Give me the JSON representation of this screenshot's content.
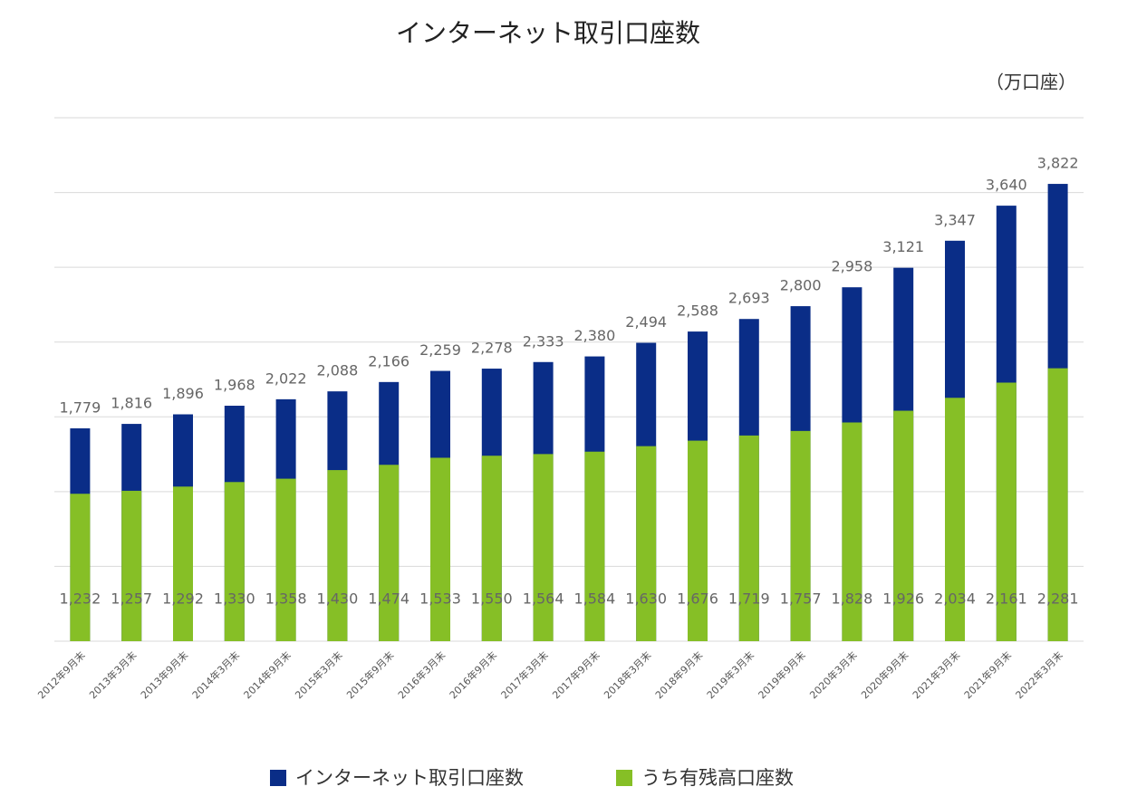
{
  "chart_data": {
    "type": "bar",
    "title": "インターネット取引口座数",
    "y_label": "（万口座）",
    "categories": [
      "2012年9月末",
      "2013年3月末",
      "2013年9月末",
      "2014年3月末",
      "2014年9月末",
      "2015年3月末",
      "2015年9月末",
      "2016年3月末",
      "2016年9月末",
      "2017年3月末",
      "2017年9月末",
      "2018年3月末",
      "2018年9月末",
      "2019年3月末",
      "2019年9月末",
      "2020年3月末",
      "2020年9月末",
      "2021年3月末",
      "2021年9月末",
      "2022年3月末"
    ],
    "series": [
      {
        "name": "インターネット取引口座数",
        "color": "#0a2d87",
        "values": [
          1779,
          1816,
          1896,
          1968,
          2022,
          2088,
          2166,
          2259,
          2278,
          2333,
          2380,
          2494,
          2588,
          2693,
          2800,
          2958,
          3121,
          3347,
          3640,
          3822
        ],
        "value_labels": [
          "1,779",
          "1,816",
          "1,896",
          "1,968",
          "2,022",
          "2,088",
          "2,166",
          "2,259",
          "2,278",
          "2,333",
          "2,380",
          "2,494",
          "2,588",
          "2,693",
          "2,800",
          "2,958",
          "3,121",
          "3,347",
          "3,640",
          "3,822"
        ]
      },
      {
        "name": "うち有残高口座数",
        "color": "#86bf26",
        "values": [
          1232,
          1257,
          1292,
          1330,
          1358,
          1430,
          1474,
          1533,
          1550,
          1564,
          1584,
          1630,
          1676,
          1719,
          1757,
          1828,
          1926,
          2034,
          2161,
          2281
        ],
        "value_labels": [
          "1,232",
          "1,257",
          "1,292",
          "1,330",
          "1,358",
          "1,430",
          "1,474",
          "1,533",
          "1,550",
          "1,564",
          "1,584",
          "1,630",
          "1,676",
          "1,719",
          "1,757",
          "1,828",
          "1,926",
          "2,034",
          "2,161",
          "2,281"
        ]
      }
    ],
    "ylim": [
      0,
      4375
    ],
    "yticks": [
      0,
      625,
      1250,
      1875,
      2500,
      3125,
      3750,
      4375
    ],
    "grid": true,
    "legend": "bottom"
  }
}
